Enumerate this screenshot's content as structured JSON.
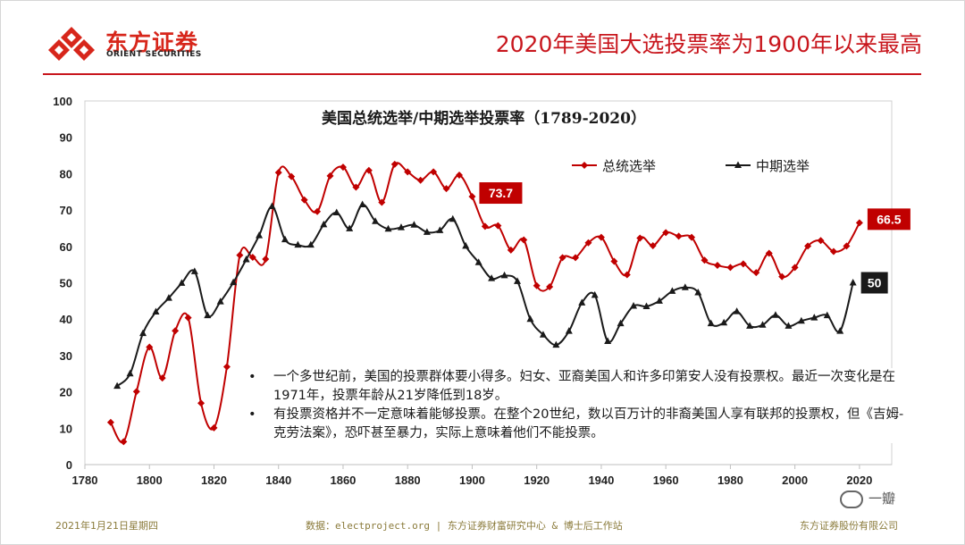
{
  "brand": {
    "name_zh": "东方证券",
    "name_en": "ORIENT SECURITIES",
    "red": "#d7261b"
  },
  "headline": "2020年美国大选投票率为1900年以来最高",
  "chart_data": {
    "type": "line",
    "title": "美国总统选举/中期选举投票率（1789-2020）",
    "xlabel": "",
    "ylabel": "",
    "xlim": [
      1780,
      2030
    ],
    "ylim": [
      0,
      100
    ],
    "x_ticks": [
      1780,
      1800,
      1820,
      1840,
      1860,
      1880,
      1900,
      1920,
      1940,
      1960,
      1980,
      2000,
      2020
    ],
    "y_ticks": [
      0,
      10,
      20,
      30,
      40,
      50,
      60,
      70,
      80,
      90,
      100
    ],
    "legend_position": "top-right",
    "series": [
      {
        "name": "总统选举",
        "color": "#c00000",
        "marker": "diamond",
        "x": [
          1788,
          1792,
          1796,
          1800,
          1804,
          1808,
          1812,
          1816,
          1820,
          1824,
          1828,
          1832,
          1836,
          1840,
          1844,
          1848,
          1852,
          1856,
          1860,
          1864,
          1868,
          1872,
          1876,
          1880,
          1884,
          1888,
          1892,
          1896,
          1900,
          1904,
          1908,
          1912,
          1916,
          1920,
          1924,
          1928,
          1932,
          1936,
          1940,
          1944,
          1948,
          1952,
          1956,
          1960,
          1964,
          1968,
          1972,
          1976,
          1980,
          1984,
          1988,
          1992,
          1996,
          2000,
          2004,
          2008,
          2012,
          2016,
          2020
        ],
        "values": [
          11.6,
          6.3,
          20.1,
          32.3,
          23.8,
          36.8,
          40.4,
          16.9,
          10.1,
          26.9,
          57.6,
          57.0,
          56.5,
          80.3,
          79.2,
          72.8,
          69.6,
          79.4,
          81.8,
          76.3,
          80.9,
          72.1,
          82.6,
          80.5,
          78.2,
          80.5,
          75.9,
          79.6,
          73.7,
          65.5,
          65.7,
          59.0,
          61.8,
          49.2,
          48.9,
          56.9,
          56.9,
          61.0,
          62.5,
          55.9,
          52.2,
          62.3,
          60.2,
          63.8,
          62.8,
          62.5,
          56.2,
          54.8,
          54.2,
          55.2,
          52.8,
          58.1,
          51.7,
          54.2,
          60.1,
          61.6,
          58.6,
          60.1,
          66.5
        ]
      },
      {
        "name": "中期选举",
        "color": "#1a1a1a",
        "marker": "triangle",
        "x": [
          1790,
          1794,
          1798,
          1802,
          1806,
          1810,
          1814,
          1818,
          1822,
          1826,
          1830,
          1834,
          1838,
          1842,
          1846,
          1850,
          1854,
          1858,
          1862,
          1866,
          1870,
          1874,
          1878,
          1882,
          1886,
          1890,
          1894,
          1898,
          1902,
          1906,
          1910,
          1914,
          1918,
          1922,
          1926,
          1930,
          1934,
          1938,
          1942,
          1946,
          1950,
          1954,
          1958,
          1962,
          1966,
          1970,
          1974,
          1978,
          1982,
          1986,
          1990,
          1994,
          1998,
          2002,
          2006,
          2010,
          2014,
          2018
        ],
        "values": [
          21.6,
          25.0,
          36.1,
          42.0,
          45.8,
          49.9,
          53.1,
          41.0,
          44.8,
          50.1,
          56.4,
          63.0,
          71.0,
          61.9,
          60.4,
          60.4,
          66.0,
          69.3,
          64.9,
          71.5,
          66.9,
          64.8,
          65.2,
          65.9,
          63.9,
          64.4,
          67.5,
          60.1,
          55.6,
          51.2,
          52.0,
          50.4,
          40.0,
          35.7,
          32.9,
          36.7,
          44.5,
          46.6,
          33.9,
          38.8,
          43.6,
          43.5,
          45.0,
          47.7,
          48.7,
          47.3,
          38.8,
          39.0,
          42.1,
          38.1,
          38.4,
          41.1,
          38.1,
          39.5,
          40.4,
          41.0,
          36.7,
          50.0
        ]
      }
    ],
    "annotations": [
      {
        "label": "73.7",
        "series": "总统选举",
        "x": 1900,
        "y": 73.7,
        "bg": "#c00000"
      },
      {
        "label": "66.5",
        "series": "总统选举",
        "x": 2020,
        "y": 66.5,
        "bg": "#c00000"
      },
      {
        "label": "50",
        "series": "中期选举",
        "x": 2018,
        "y": 50.0,
        "bg": "#1a1a1a"
      }
    ]
  },
  "notes": [
    {
      "bullet": "•",
      "text": "一个多世纪前，美国的投票群体要小得多。妇女、亚裔美国人和许多印第安人没有投票权。最近一次变化是在1971年，投票年龄从21岁降低到18岁。"
    },
    {
      "bullet": "•",
      "text": "有投票资格并不一定意味着能够投票。在整个20世纪，数以百万计的非裔美国人享有联邦的投票权，但《吉姆-克劳法案》，恐吓甚至暴力，实际上意味着他们不能投票。"
    }
  ],
  "footer": {
    "date": "2021年1月21日星期四",
    "source": "数据：electproject.org | 东方证券财富研究中心 & 博士后工作站",
    "org": "东方证券股份有限公司"
  },
  "watermark": "一瓣"
}
